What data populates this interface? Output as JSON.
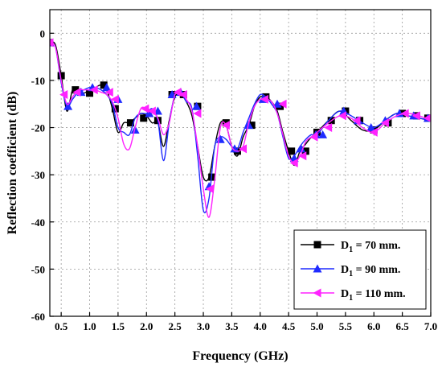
{
  "chart_data": {
    "type": "line",
    "xlabel": "Frequency (GHz)",
    "ylabel": "Reflection coefficient (dB)",
    "xlim": [
      0.3,
      7.0
    ],
    "ylim": [
      -60,
      5
    ],
    "x_ticks": [
      0.5,
      1.0,
      1.5,
      2.0,
      2.5,
      3.0,
      3.5,
      4.0,
      4.5,
      5.0,
      5.5,
      6.0,
      6.5,
      7.0
    ],
    "x_tick_labels": [
      "0.5",
      "1.0",
      "1.5",
      "2.0",
      "2.5",
      "3.0",
      "3.5",
      "4.0",
      "4.5",
      "5.0",
      "5.5",
      "6.0",
      "6.5",
      "7.0"
    ],
    "y_ticks": [
      0,
      -10,
      -20,
      -30,
      -40,
      -50,
      -60
    ],
    "y_tick_labels": [
      "0",
      "-10",
      "-20",
      "-30",
      "-40",
      "-50",
      "-60"
    ],
    "grid": true,
    "legend_position": "bottom-right",
    "series": [
      {
        "legend_main": "D",
        "legend_sub": "1",
        "legend_rest": " = 70 mm.",
        "color": "#000000",
        "marker": "square",
        "x": [
          0.3,
          0.4,
          0.5,
          0.6,
          0.7,
          0.8,
          0.9,
          1.0,
          1.1,
          1.2,
          1.3,
          1.4,
          1.5,
          1.6,
          1.7,
          1.8,
          1.9,
          2.0,
          2.1,
          2.2,
          2.3,
          2.4,
          2.5,
          2.6,
          2.7,
          2.8,
          2.9,
          3.0,
          3.1,
          3.2,
          3.3,
          3.4,
          3.5,
          3.6,
          3.7,
          3.8,
          3.9,
          4.0,
          4.1,
          4.2,
          4.3,
          4.4,
          4.5,
          4.6,
          4.7,
          4.8,
          4.9,
          5.0,
          5.2,
          5.4,
          5.6,
          5.8,
          6.0,
          6.2,
          6.4,
          6.6,
          6.8,
          7.0
        ],
        "y": [
          -2,
          -2.5,
          -9,
          -16.5,
          -12,
          -12.5,
          -12.7,
          -12,
          -11.5,
          -11,
          -12,
          -16,
          -21,
          -19,
          -19,
          -18,
          -17,
          -17.5,
          -19,
          -19,
          -24,
          -18.5,
          -13.5,
          -13,
          -14.5,
          -17.5,
          -24,
          -30.5,
          -30.5,
          -24,
          -19,
          -19.5,
          -24,
          -26,
          -22,
          -19.5,
          -15.5,
          -13.5,
          -13.5,
          -14.5,
          -16.5,
          -21,
          -25,
          -28,
          -25,
          -23.5,
          -22,
          -21,
          -18.5,
          -16.5,
          -18.5,
          -20.5,
          -20.5,
          -18.5,
          -17,
          -17.5,
          -18,
          -18.5
        ],
        "markers_x": [
          0.3,
          0.5,
          0.75,
          1.0,
          1.25,
          1.45,
          1.72,
          1.95,
          2.2,
          2.45,
          2.65,
          2.9,
          3.15,
          3.4,
          3.6,
          3.85,
          4.1,
          4.35,
          4.55,
          4.8,
          5.0,
          5.25,
          5.5,
          5.75,
          6.0,
          6.25,
          6.5,
          6.75,
          6.95
        ],
        "markers_y": [
          -2,
          -9,
          -12,
          -12.7,
          -11,
          -16,
          -19,
          -18,
          -18.5,
          -13,
          -13,
          -15.5,
          -30.5,
          -19,
          -25,
          -19.5,
          -13.5,
          -15.5,
          -25,
          -25,
          -21,
          -18.5,
          -16.5,
          -18.5,
          -20.5,
          -19,
          -17,
          -17.5,
          -18
        ]
      },
      {
        "legend_main": "D",
        "legend_sub": "1",
        "legend_rest": " = 90 mm.",
        "color": "#1f2bff",
        "marker": "triangle",
        "x": [
          0.3,
          0.4,
          0.5,
          0.6,
          0.7,
          0.8,
          0.9,
          1.0,
          1.1,
          1.2,
          1.3,
          1.4,
          1.5,
          1.6,
          1.7,
          1.8,
          1.9,
          2.0,
          2.1,
          2.2,
          2.3,
          2.4,
          2.5,
          2.6,
          2.7,
          2.8,
          2.9,
          3.0,
          3.1,
          3.2,
          3.3,
          3.4,
          3.5,
          3.6,
          3.7,
          3.8,
          3.9,
          4.0,
          4.1,
          4.2,
          4.3,
          4.4,
          4.5,
          4.6,
          4.7,
          4.8,
          4.9,
          5.0,
          5.2,
          5.4,
          5.6,
          5.8,
          6.0,
          6.2,
          6.4,
          6.6,
          6.8,
          7.0
        ],
        "y": [
          -2,
          -3,
          -10.5,
          -15.5,
          -14,
          -12.5,
          -12,
          -11.5,
          -11.5,
          -12,
          -13,
          -15,
          -20,
          -21,
          -21.5,
          -18,
          -17,
          -17,
          -16,
          -18.5,
          -27,
          -19,
          -13,
          -12.5,
          -14.5,
          -16,
          -26,
          -37.5,
          -35,
          -24,
          -22,
          -22.5,
          -24,
          -24.5,
          -21,
          -18,
          -15,
          -13,
          -13.5,
          -15,
          -17,
          -22,
          -26.5,
          -26,
          -24,
          -22.5,
          -21.5,
          -21.5,
          -18.5,
          -16.5,
          -17.5,
          -19,
          -20,
          -18.5,
          -17,
          -17.5,
          -18,
          -18.5
        ],
        "markers_x": [
          0.3,
          0.62,
          0.85,
          1.05,
          1.3,
          1.5,
          1.8,
          2.05,
          2.2,
          2.45,
          2.6,
          2.88,
          3.1,
          3.3,
          3.55,
          3.8,
          4.05,
          4.3,
          4.6,
          4.72,
          4.98,
          5.1,
          5.47,
          5.72,
          5.95,
          6.2,
          6.45,
          6.7,
          6.95
        ],
        "markers_y": [
          -2,
          -15.5,
          -12.5,
          -11.5,
          -11.5,
          -14,
          -20.5,
          -17,
          -16.5,
          -13,
          -12.5,
          -15.5,
          -32.5,
          -22.5,
          -24.5,
          -19.5,
          -14,
          -15,
          -26.5,
          -24.5,
          -21.5,
          -21.5,
          -16.5,
          -18.5,
          -20,
          -18.5,
          -17,
          -17.5,
          -18
        ]
      },
      {
        "legend_main": "D",
        "legend_sub": "1",
        "legend_rest": " = 110 mm.",
        "color": "#ff22ff",
        "marker": "left-triangle",
        "x": [
          0.3,
          0.4,
          0.5,
          0.6,
          0.7,
          0.8,
          0.9,
          1.0,
          1.1,
          1.2,
          1.3,
          1.4,
          1.5,
          1.6,
          1.7,
          1.8,
          1.9,
          2.0,
          2.1,
          2.2,
          2.3,
          2.4,
          2.5,
          2.6,
          2.7,
          2.8,
          2.9,
          3.0,
          3.1,
          3.2,
          3.3,
          3.4,
          3.5,
          3.6,
          3.7,
          3.8,
          3.9,
          4.0,
          4.1,
          4.2,
          4.3,
          4.4,
          4.5,
          4.6,
          4.7,
          4.8,
          4.9,
          5.0,
          5.2,
          5.4,
          5.6,
          5.8,
          6.0,
          6.2,
          6.4,
          6.6,
          6.8,
          7.0
        ],
        "y": [
          -2,
          -3,
          -10,
          -15,
          -13.5,
          -12,
          -12,
          -12,
          -12,
          -12.5,
          -13,
          -14.5,
          -18,
          -23.5,
          -24.5,
          -20,
          -16,
          -16,
          -16.5,
          -18,
          -21.5,
          -19,
          -13,
          -12.5,
          -14,
          -16.5,
          -24,
          -33,
          -39,
          -31,
          -20,
          -19.5,
          -24,
          -25,
          -24,
          -19,
          -15.5,
          -14,
          -14,
          -14.5,
          -17,
          -21.5,
          -26,
          -27.5,
          -26,
          -23,
          -22,
          -21,
          -19,
          -17.5,
          -18,
          -20,
          -21,
          -19,
          -17.5,
          -17,
          -17.5,
          -18.5
        ],
        "markers_x": [
          0.3,
          0.55,
          0.78,
          1.08,
          1.35,
          1.45,
          1.98,
          2.1,
          2.55,
          2.65,
          2.9,
          3.12,
          3.4,
          3.7,
          4.08,
          4.4,
          4.6,
          4.75,
          4.95,
          5.2,
          5.45,
          5.7,
          6.0,
          6.2,
          6.55,
          6.75,
          6.95
        ],
        "markers_y": [
          -2,
          -13,
          -12.5,
          -12,
          -12.5,
          -14,
          -16,
          -16.5,
          -12.5,
          -13,
          -17,
          -33,
          -19.5,
          -24.5,
          -14,
          -15,
          -27.5,
          -26,
          -22,
          -20,
          -17.5,
          -18.5,
          -21,
          -19,
          -17,
          -17.5,
          -18
        ]
      }
    ]
  }
}
